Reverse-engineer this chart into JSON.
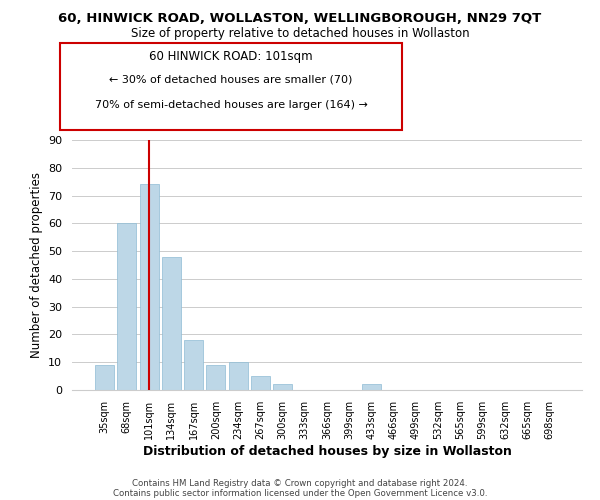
{
  "title": "60, HINWICK ROAD, WOLLASTON, WELLINGBOROUGH, NN29 7QT",
  "subtitle": "Size of property relative to detached houses in Wollaston",
  "xlabel": "Distribution of detached houses by size in Wollaston",
  "ylabel": "Number of detached properties",
  "bar_labels": [
    "35sqm",
    "68sqm",
    "101sqm",
    "134sqm",
    "167sqm",
    "200sqm",
    "234sqm",
    "267sqm",
    "300sqm",
    "333sqm",
    "366sqm",
    "399sqm",
    "433sqm",
    "466sqm",
    "499sqm",
    "532sqm",
    "565sqm",
    "599sqm",
    "632sqm",
    "665sqm",
    "698sqm"
  ],
  "bar_values": [
    9,
    60,
    74,
    48,
    18,
    9,
    10,
    5,
    2,
    0,
    0,
    0,
    2,
    0,
    0,
    0,
    0,
    0,
    0,
    0,
    0
  ],
  "highlight_index": 2,
  "bar_color": "#bdd7e7",
  "vline_color": "#cc0000",
  "vline_index": 2,
  "ylim": [
    0,
    90
  ],
  "yticks": [
    0,
    10,
    20,
    30,
    40,
    50,
    60,
    70,
    80,
    90
  ],
  "annotation_title": "60 HINWICK ROAD: 101sqm",
  "annotation_line1": "← 30% of detached houses are smaller (70)",
  "annotation_line2": "70% of semi-detached houses are larger (164) →",
  "footer1": "Contains HM Land Registry data © Crown copyright and database right 2024.",
  "footer2": "Contains public sector information licensed under the Open Government Licence v3.0.",
  "background_color": "#ffffff",
  "grid_color": "#cccccc"
}
